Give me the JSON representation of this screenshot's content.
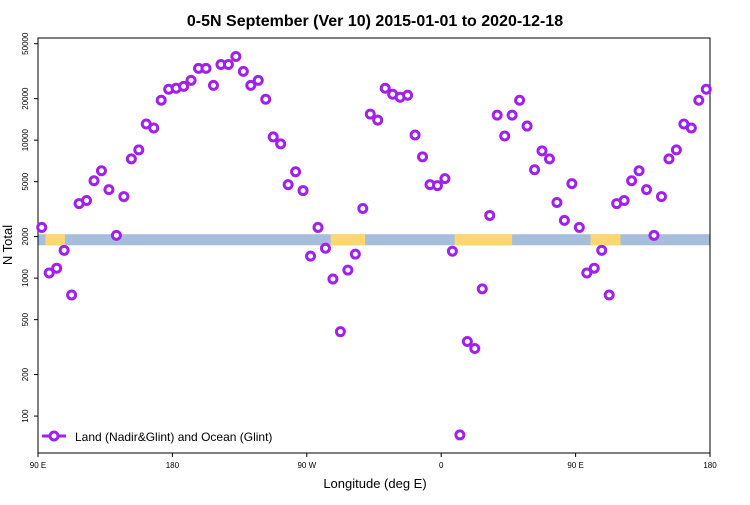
{
  "chart_data": {
    "type": "scatter",
    "title": "0-5N September (Ver 10)   2015-01-01 to 2020-12-18",
    "xlabel": "Longitude (deg E)",
    "ylabel": "N Total",
    "y_scale": "log",
    "ylim": [
      54,
      55000
    ],
    "xlim": [
      90,
      540
    ],
    "x_unit_note": "longitude, continuous from 90E eastward through 180, 90W, 0, 90E to 180",
    "x_ticks": [
      {
        "value": 90,
        "label": "90 E"
      },
      {
        "value": 180,
        "label": "180"
      },
      {
        "value": 270,
        "label": "90 W"
      },
      {
        "value": 360,
        "label": "0"
      },
      {
        "value": 450,
        "label": "90 E"
      },
      {
        "value": 540,
        "label": "180"
      }
    ],
    "y_ticks": [
      100,
      200,
      500,
      1000,
      2000,
      5000,
      10000,
      20000,
      50000
    ],
    "grid": false,
    "legend": {
      "placement": "bottom-left",
      "entries": [
        {
          "label": "Land (Nadir&Glint) and Ocean (Glint)",
          "color": "#a020f0"
        }
      ]
    },
    "series": [
      {
        "name": "Land (Nadir&Glint) and Ocean (Glint)",
        "color": "#a020f0",
        "x_start": 92.5,
        "x_step": 5,
        "values": [
          2330,
          1090,
          1180,
          1590,
          755,
          3470,
          3650,
          5080,
          6000,
          4380,
          2040,
          3900,
          7320,
          8500,
          13090,
          12240,
          19460,
          23380,
          23770,
          24550,
          27120,
          33110,
          33110,
          24950,
          35360,
          35360,
          40370,
          31500,
          24950,
          27120,
          19800,
          10550,
          9390,
          4760,
          5900,
          4310,
          1443,
          2330,
          1647,
          985,
          409,
          1143,
          1492,
          3197,
          15450,
          13970,
          23770,
          21520,
          20470,
          21150,
          10900,
          7570,
          4760,
          4680,
          5260,
          1567,
          73,
          347,
          309,
          835,
          2846,
          15180,
          10720,
          15180,
          19460,
          12650,
          6100,
          8360,
          7320,
          3530,
          2620,
          4840,
          2330,
          1090,
          1180,
          1590,
          755,
          3470,
          3650,
          5080,
          6000,
          4380,
          2040,
          3900,
          7320,
          8500,
          13090,
          12240,
          19460,
          23380
        ]
      }
    ],
    "surface_strip": {
      "ocean_color": "#a6bddb",
      "land_color": "#fdd872",
      "y_range": [
        1730,
        2080
      ],
      "land_segments": [
        [
          95,
          108
        ],
        [
          286,
          309
        ],
        [
          369,
          407.5
        ],
        [
          460,
          480
        ]
      ]
    }
  }
}
